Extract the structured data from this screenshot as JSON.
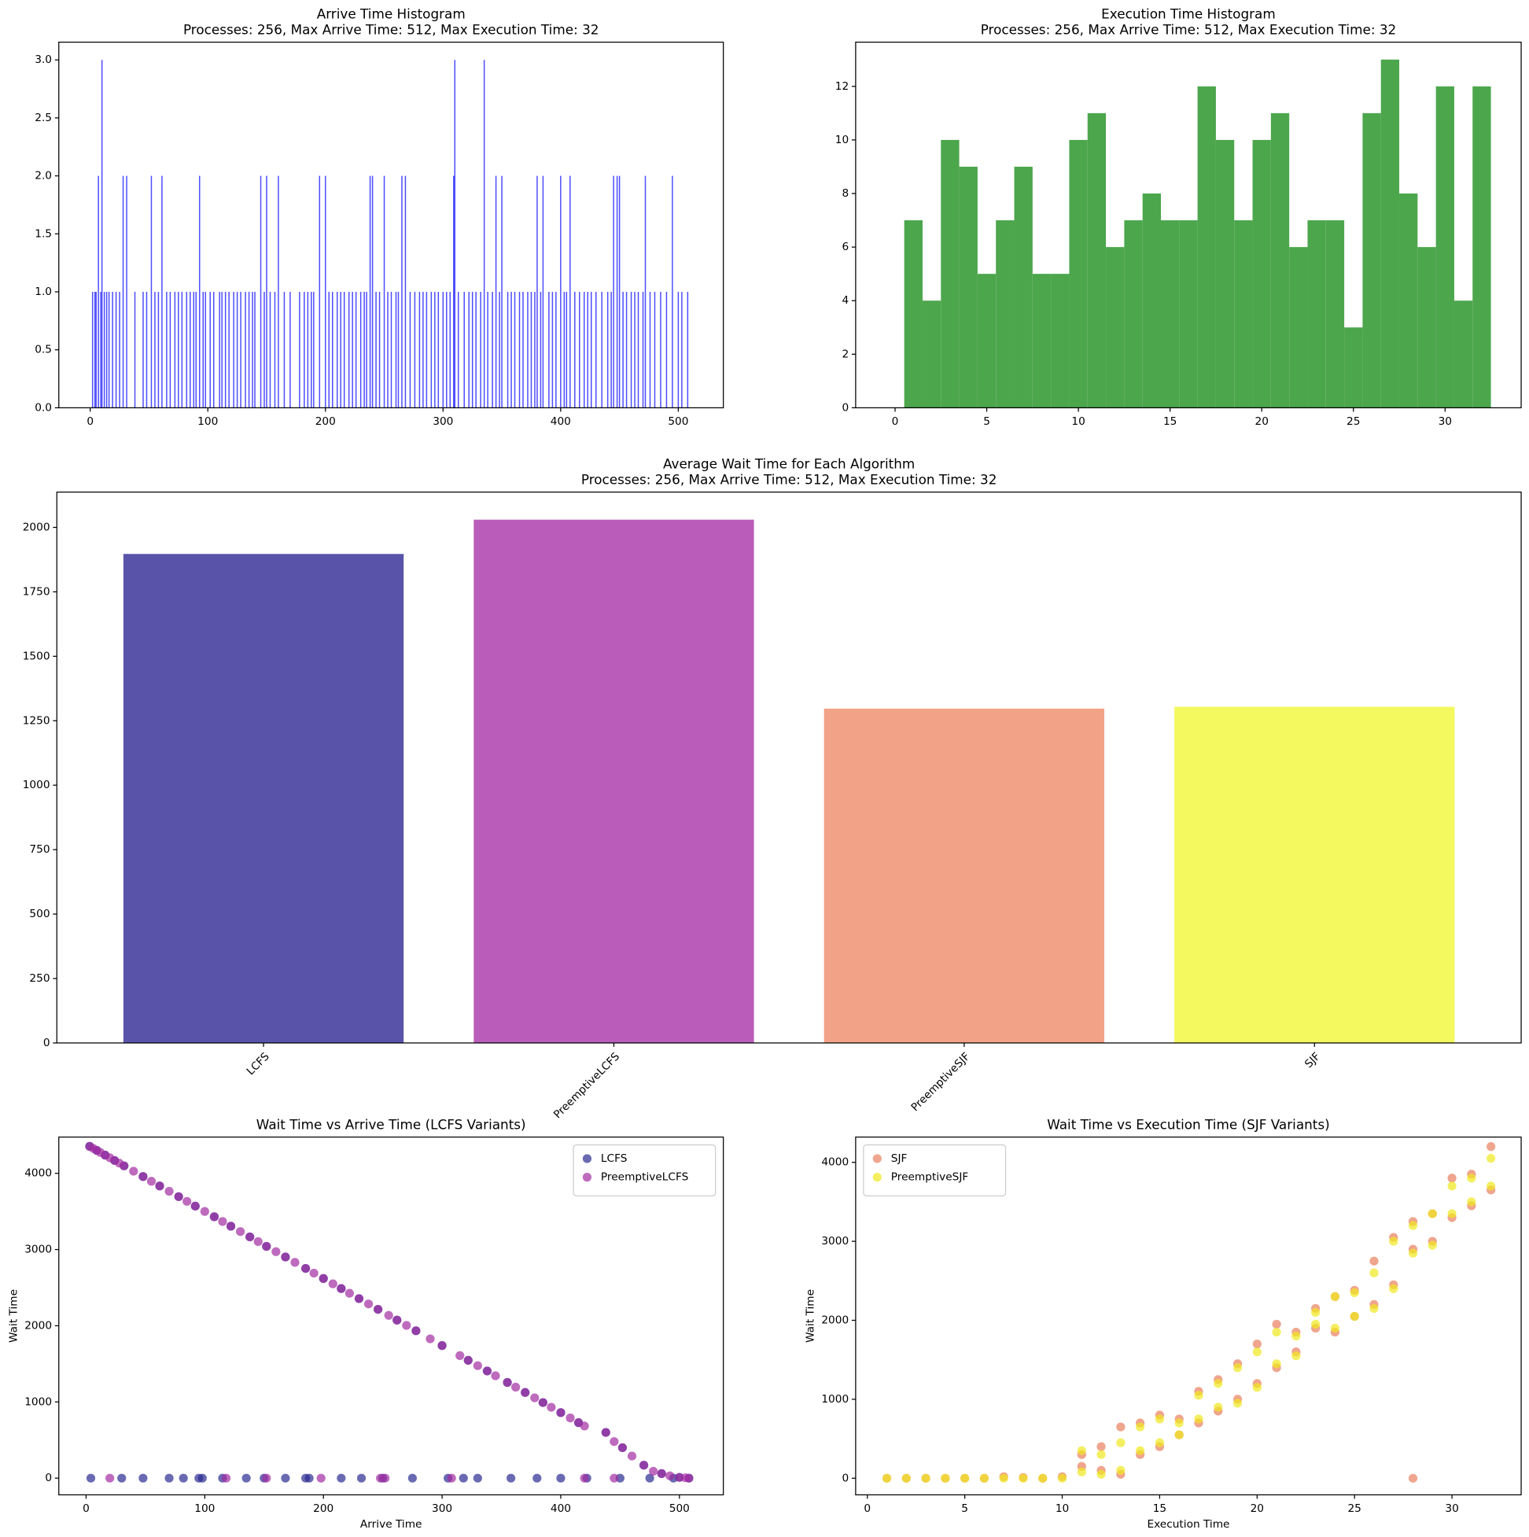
{
  "chart_data": [
    {
      "type": "bar",
      "title": "Arrive Time Histogram",
      "subtitle": "Processes: 256, Max Arrive Time: 512, Max Execution Time: 32",
      "color": "#4d4dff",
      "x": [
        2,
        4,
        5,
        7,
        9,
        10,
        12,
        14,
        16,
        19,
        22,
        25,
        28,
        31,
        38,
        45,
        48,
        52,
        55,
        58,
        61,
        65,
        68,
        72,
        75,
        78,
        82,
        85,
        88,
        90,
        93,
        96,
        98,
        102,
        105,
        110,
        112,
        115,
        118,
        122,
        125,
        128,
        132,
        135,
        138,
        140,
        145,
        148,
        150,
        153,
        157,
        160,
        165,
        170,
        178,
        182,
        185,
        188,
        190,
        195,
        200,
        203,
        206,
        210,
        213,
        216,
        220,
        223,
        226,
        230,
        233,
        235,
        238,
        240,
        243,
        246,
        250,
        253,
        256,
        260,
        262,
        265,
        268,
        272,
        276,
        280,
        283,
        286,
        290,
        293,
        296,
        300,
        303,
        306,
        309,
        310,
        313,
        318,
        322,
        325,
        328,
        332,
        335,
        338,
        342,
        345,
        348,
        350,
        355,
        358,
        361,
        365,
        368,
        372,
        375,
        378,
        380,
        383,
        385,
        390,
        393,
        396,
        400,
        403,
        405,
        408,
        412,
        416,
        420,
        423,
        426,
        430,
        435,
        440,
        443,
        445,
        448,
        450,
        453,
        456,
        460,
        463,
        466,
        470,
        472,
        476,
        480,
        485,
        490,
        495,
        500,
        503,
        508
      ],
      "values": [
        1,
        1,
        1,
        2,
        1,
        3,
        1,
        1,
        1,
        1,
        1,
        1,
        2,
        2,
        1,
        1,
        1,
        2,
        1,
        1,
        2,
        1,
        1,
        1,
        1,
        1,
        1,
        1,
        1,
        1,
        2,
        1,
        1,
        1,
        1,
        1,
        1,
        1,
        1,
        1,
        1,
        1,
        1,
        1,
        1,
        1,
        2,
        1,
        2,
        1,
        1,
        2,
        1,
        1,
        1,
        1,
        1,
        1,
        1,
        2,
        2,
        1,
        1,
        1,
        1,
        1,
        1,
        1,
        1,
        1,
        1,
        1,
        2,
        2,
        1,
        1,
        2,
        1,
        1,
        1,
        1,
        2,
        2,
        1,
        1,
        1,
        1,
        1,
        1,
        1,
        1,
        1,
        1,
        1,
        2,
        3,
        1,
        1,
        1,
        1,
        1,
        1,
        3,
        1,
        1,
        2,
        1,
        2,
        1,
        1,
        1,
        1,
        1,
        1,
        1,
        1,
        2,
        1,
        2,
        1,
        1,
        1,
        2,
        1,
        1,
        2,
        1,
        1,
        1,
        1,
        1,
        1,
        1,
        1,
        1,
        2,
        2,
        2,
        1,
        1,
        1,
        1,
        1,
        1,
        2,
        1,
        1,
        1,
        1,
        2,
        1,
        1,
        1
      ],
      "xlim": [
        -26.7,
        538.3
      ],
      "ylim": [
        0,
        3.153
      ],
      "xticks": [
        0,
        100,
        200,
        300,
        400,
        500
      ],
      "yticks": [
        {
          "value": 0,
          "label": "0.0"
        },
        {
          "value": 0.5,
          "label": "0.5"
        },
        {
          "value": 1,
          "label": "1.0"
        },
        {
          "value": 1.5,
          "label": "1.5"
        },
        {
          "value": 2,
          "label": "2.0"
        },
        {
          "value": 2.5,
          "label": "2.5"
        },
        {
          "value": 3,
          "label": "3.0"
        }
      ]
    },
    {
      "type": "histogram",
      "title": "Execution Time Histogram",
      "subtitle": "Processes: 256, Max Arrive Time: 512, Max Execution Time: 32",
      "color": "#4ca64c",
      "bins": [
        -0.5,
        0.5,
        1.5,
        2.5,
        3.5,
        4.5,
        5.5,
        6.5,
        7.5,
        8.5,
        9.5,
        10.5,
        11.5,
        12.5,
        13.5,
        14.5,
        15.5,
        16.5,
        17.5,
        18.5,
        19.5,
        20.5,
        21.5,
        22.5,
        23.5,
        24.5,
        25.5,
        26.5,
        27.5,
        28.5,
        29.5,
        30.5,
        31.5,
        32.5
      ],
      "values": [
        0,
        7,
        4,
        10,
        9,
        5,
        7,
        9,
        5,
        5,
        10,
        11,
        6,
        7,
        8,
        7,
        7,
        12,
        10,
        7,
        10,
        11,
        6,
        7,
        7,
        3,
        11,
        13,
        8,
        6,
        12,
        4,
        12
      ],
      "xlim": [
        -2.15,
        34.15
      ],
      "ylim": [
        0,
        13.65
      ],
      "xticks": [
        0,
        5,
        10,
        15,
        20,
        25,
        30
      ],
      "yticks": [
        0,
        2,
        4,
        6,
        8,
        10,
        12
      ]
    },
    {
      "type": "bar",
      "title": "Average Wait Time for Each Algorithm",
      "subtitle": "Processes: 256, Max Arrive Time: 512, Max Execution Time: 32",
      "categories": [
        "LCFS",
        "PreemptiveLCFS",
        "PreemptiveSJF",
        "SJF"
      ],
      "values": [
        1897,
        2030,
        1297,
        1304
      ],
      "colors": [
        "#5954aa",
        "#ba5dba",
        "#f2a286",
        "#f3f95e"
      ],
      "ylim": [
        0,
        2137
      ],
      "yticks": [
        0,
        250,
        500,
        750,
        1000,
        1250,
        1500,
        1750,
        2000
      ]
    },
    {
      "type": "scatter",
      "title": "Wait Time vs Arrive Time (LCFS Variants)",
      "x_label": "Arrive Time",
      "y_label": "Wait Time",
      "legend": "upper right",
      "xlim": [
        -23,
        537
      ],
      "ylim": [
        -219,
        4476
      ],
      "xticks": [
        0,
        100,
        200,
        300,
        400,
        500
      ],
      "yticks": [
        0,
        1000,
        2000,
        3000,
        4000
      ],
      "series": [
        {
          "name": "LCFS",
          "color": "#2b2b92",
          "x": [
            3,
            9,
            16,
            24,
            32,
            48,
            62,
            78,
            92,
            108,
            122,
            138,
            152,
            168,
            185,
            200,
            215,
            230,
            246,
            262,
            278,
            300,
            322,
            338,
            355,
            370,
            385,
            400,
            415,
            438,
            452,
            470,
            485,
            500,
            508,
            4,
            30,
            48,
            70,
            82,
            95,
            98,
            115,
            135,
            150,
            168,
            185,
            188,
            215,
            232,
            250,
            275,
            305,
            318,
            330,
            358,
            380,
            400,
            422,
            450,
            475,
            495
          ],
          "values": [
            4354,
            4301,
            4239,
            4169,
            4098,
            3958,
            3834,
            3694,
            3570,
            3430,
            3306,
            3166,
            3042,
            2902,
            2752,
            2620,
            2488,
            2356,
            2215,
            2074,
            1934,
            1740,
            1546,
            1406,
            1256,
            1124,
            992,
            860,
            728,
            600,
            400,
            170,
            60,
            10,
            0,
            0,
            0,
            0,
            0,
            0,
            0,
            0,
            0,
            0,
            0,
            0,
            0,
            0,
            0,
            0,
            0,
            0,
            0,
            0,
            0,
            0,
            0,
            0,
            0,
            0,
            0,
            0
          ]
        },
        {
          "name": "PreemptiveLCFS",
          "color": "#a22ca2",
          "x": [
            3,
            6,
            9,
            12,
            16,
            20,
            24,
            28,
            32,
            40,
            48,
            55,
            62,
            70,
            78,
            85,
            92,
            100,
            108,
            115,
            122,
            130,
            138,
            145,
            152,
            160,
            168,
            176,
            185,
            192,
            200,
            208,
            215,
            222,
            230,
            238,
            246,
            255,
            262,
            270,
            278,
            290,
            300,
            315,
            322,
            330,
            338,
            345,
            355,
            362,
            370,
            378,
            385,
            392,
            400,
            408,
            415,
            420,
            438,
            445,
            452,
            460,
            470,
            478,
            485,
            492,
            500,
            505,
            508,
            20,
            118,
            152,
            198,
            248,
            252,
            308,
            420,
            445
          ],
          "values": [
            4354,
            4327,
            4301,
            4274,
            4239,
            4204,
            4169,
            4134,
            4098,
            4028,
            3958,
            3896,
            3834,
            3764,
            3694,
            3632,
            3570,
            3500,
            3430,
            3368,
            3306,
            3236,
            3166,
            3104,
            3042,
            2972,
            2902,
            2831,
            2752,
            2690,
            2620,
            2550,
            2488,
            2426,
            2356,
            2286,
            2215,
            2136,
            2074,
            2004,
            1934,
            1828,
            1740,
            1608,
            1546,
            1476,
            1406,
            1344,
            1256,
            1194,
            1124,
            1054,
            992,
            930,
            860,
            790,
            728,
            684,
            600,
            480,
            400,
            290,
            170,
            90,
            60,
            30,
            10,
            5,
            0,
            0,
            0,
            0,
            0,
            0,
            0,
            0,
            0,
            0
          ]
        }
      ]
    },
    {
      "type": "scatter",
      "title": "Wait Time vs Execution Time (SJF Variants)",
      "x_label": "Execution Time",
      "y_label": "Wait Time",
      "legend": "upper left",
      "xlim": [
        -0.6,
        33.55
      ],
      "ylim": [
        -210,
        4320
      ],
      "xticks": [
        0,
        5,
        10,
        15,
        20,
        25,
        30
      ],
      "yticks": [
        0,
        1000,
        2000,
        3000,
        4000
      ],
      "series": [
        {
          "name": "SJF",
          "color": "#ea7f5e",
          "x": [
            1,
            2,
            3,
            4,
            5,
            6,
            7,
            8,
            9,
            10,
            11,
            11,
            12,
            12,
            13,
            13,
            14,
            14,
            15,
            15,
            16,
            16,
            17,
            17,
            18,
            18,
            19,
            19,
            20,
            20,
            21,
            21,
            22,
            22,
            23,
            23,
            24,
            24,
            25,
            25,
            26,
            26,
            27,
            27,
            28,
            28,
            28,
            29,
            29,
            30,
            30,
            31,
            31,
            32,
            32
          ],
          "values": [
            0,
            0,
            0,
            0,
            0,
            0,
            20,
            10,
            0,
            20,
            150,
            300,
            100,
            400,
            50,
            650,
            300,
            700,
            400,
            800,
            550,
            750,
            700,
            1100,
            850,
            1250,
            1000,
            1450,
            1200,
            1700,
            1400,
            1950,
            1600,
            1850,
            1900,
            2150,
            1850,
            2300,
            2050,
            2380,
            2200,
            2750,
            2450,
            3050,
            0,
            2900,
            3250,
            3000,
            3350,
            3300,
            3800,
            3450,
            3850,
            3650,
            4200
          ]
        },
        {
          "name": "PreemptiveSJF",
          "color": "#f0e81c",
          "x": [
            1,
            2,
            3,
            4,
            5,
            6,
            7,
            8,
            9,
            10,
            11,
            11,
            12,
            12,
            13,
            13,
            14,
            14,
            15,
            15,
            16,
            16,
            17,
            17,
            18,
            18,
            19,
            19,
            20,
            20,
            21,
            21,
            22,
            22,
            23,
            23,
            24,
            24,
            25,
            25,
            26,
            26,
            27,
            27,
            28,
            28,
            29,
            29,
            30,
            30,
            31,
            31,
            32,
            32
          ],
          "values": [
            0,
            0,
            0,
            0,
            0,
            0,
            0,
            0,
            0,
            0,
            80,
            350,
            50,
            300,
            100,
            450,
            350,
            650,
            450,
            750,
            550,
            700,
            750,
            1050,
            900,
            1200,
            950,
            1400,
            1150,
            1600,
            1450,
            1850,
            1550,
            1800,
            1950,
            2100,
            1900,
            2300,
            2050,
            2350,
            2150,
            2600,
            2400,
            3000,
            2850,
            3200,
            2950,
            3350,
            3350,
            3700,
            3500,
            3800,
            3700,
            4050
          ]
        }
      ]
    }
  ]
}
